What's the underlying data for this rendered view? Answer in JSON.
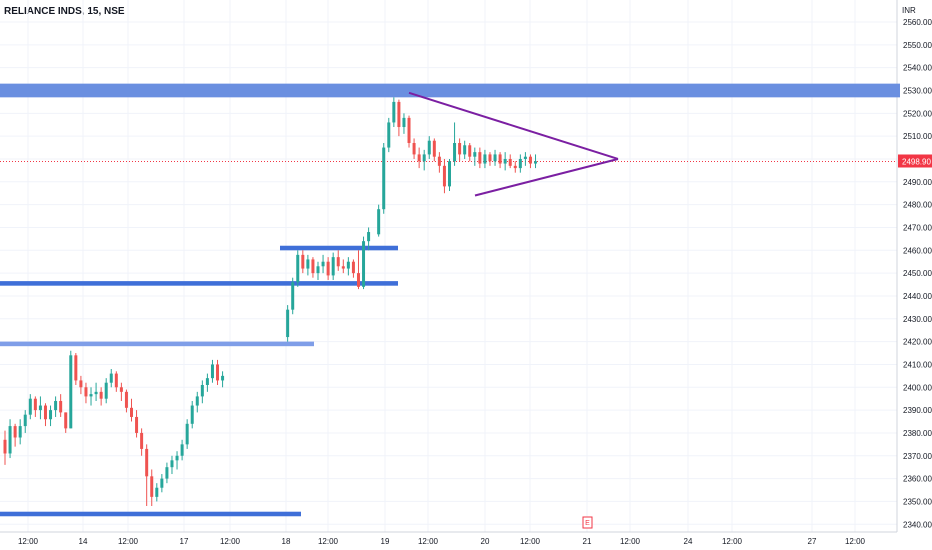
{
  "header": {
    "title": "RELIANCE INDS, 15, NSE",
    "currency": "INR"
  },
  "chart_data": {
    "type": "candlestick",
    "symbol": "RELIANCE INDS",
    "interval": "15",
    "exchange": "NSE",
    "ylim": [
      2335,
      2568
    ],
    "y_ticks": [
      2560.0,
      2550.0,
      2540.0,
      2530.0,
      2520.0,
      2510.0,
      2500.0,
      2490.0,
      2480.0,
      2470.0,
      2460.0,
      2450.0,
      2440.0,
      2430.0,
      2420.0,
      2410.0,
      2400.0,
      2390.0,
      2380.0,
      2370.0,
      2360.0,
      2350.0,
      2340.0
    ],
    "y_tick_labels": [
      "2560.00",
      "2550.00",
      "2540.00",
      "2530.00",
      "2520.00",
      "2510.00",
      "2500.00",
      "2490.00",
      "2480.00",
      "2470.00",
      "2460.00",
      "2450.00",
      "2440.00",
      "2430.00",
      "2420.00",
      "2410.00",
      "2400.00",
      "2390.00",
      "2380.00",
      "2370.00",
      "2360.00",
      "2350.00",
      "2340.00"
    ],
    "x_tick_labels": [
      "12:00",
      "14",
      "12:00",
      "17",
      "12:00",
      "18",
      "12:00",
      "19",
      "12:00",
      "20",
      "12:00",
      "21",
      "12:00",
      "24",
      "12:00",
      "27",
      "12:00"
    ],
    "current_price": "2498.90",
    "colors": {
      "up": "#26a69a",
      "down": "#ef5350",
      "zones": "#3f6fd8",
      "light_zone": "#6a8fe0",
      "triangle": "#7b1fa2",
      "price_line": "#f23645"
    },
    "candles": [
      [
        2377,
        2381,
        2366,
        2371
      ],
      [
        2371,
        2386,
        2369,
        2383
      ],
      [
        2383,
        2384,
        2374,
        2378
      ],
      [
        2378,
        2386,
        2375,
        2383
      ],
      [
        2383,
        2390,
        2380,
        2388
      ],
      [
        2388,
        2397,
        2386,
        2395
      ],
      [
        2395,
        2396,
        2387,
        2390
      ],
      [
        2390,
        2396,
        2386,
        2392
      ],
      [
        2392,
        2393,
        2383,
        2386
      ],
      [
        2386,
        2392,
        2383,
        2390
      ],
      [
        2390,
        2396,
        2387,
        2394
      ],
      [
        2394,
        2397,
        2387,
        2389
      ],
      [
        2389,
        2389,
        2380,
        2382
      ],
      [
        2382,
        2416,
        2382,
        2414
      ],
      [
        2414,
        2415,
        2401,
        2403
      ],
      [
        2403,
        2405,
        2397,
        2400
      ],
      [
        2400,
        2402,
        2393,
        2396
      ],
      [
        2396,
        2400,
        2392,
        2397
      ],
      [
        2397,
        2402,
        2394,
        2398
      ],
      [
        2398,
        2400,
        2392,
        2395
      ],
      [
        2395,
        2404,
        2393,
        2402
      ],
      [
        2402,
        2408,
        2400,
        2406
      ],
      [
        2406,
        2407,
        2398,
        2400
      ],
      [
        2400,
        2402,
        2394,
        2398
      ],
      [
        2398,
        2399,
        2389,
        2391
      ],
      [
        2391,
        2395,
        2385,
        2387
      ],
      [
        2387,
        2390,
        2378,
        2380
      ],
      [
        2380,
        2382,
        2370,
        2373
      ],
      [
        2373,
        2375,
        2348,
        2361
      ],
      [
        2361,
        2364,
        2348,
        2352
      ],
      [
        2352,
        2358,
        2350,
        2356
      ],
      [
        2356,
        2362,
        2354,
        2360
      ],
      [
        2360,
        2367,
        2358,
        2365
      ],
      [
        2365,
        2370,
        2362,
        2368
      ],
      [
        2368,
        2372,
        2364,
        2370
      ],
      [
        2370,
        2377,
        2368,
        2375
      ],
      [
        2375,
        2386,
        2373,
        2384
      ],
      [
        2384,
        2394,
        2382,
        2392
      ],
      [
        2392,
        2398,
        2389,
        2396
      ],
      [
        2396,
        2403,
        2393,
        2401
      ],
      [
        2401,
        2406,
        2398,
        2404
      ],
      [
        2404,
        2412,
        2402,
        2410
      ],
      [
        2410,
        2412,
        2401,
        2403
      ],
      [
        2403,
        2407,
        2400,
        2405
      ],
      [
        2422,
        2436,
        2420,
        2434
      ],
      [
        2434,
        2448,
        2432,
        2446
      ],
      [
        2446,
        2460,
        2444,
        2458
      ],
      [
        2458,
        2460,
        2450,
        2452
      ],
      [
        2452,
        2458,
        2449,
        2456
      ],
      [
        2456,
        2457,
        2448,
        2450
      ],
      [
        2450,
        2455,
        2447,
        2453
      ],
      [
        2453,
        2458,
        2450,
        2455
      ],
      [
        2455,
        2457,
        2447,
        2449
      ],
      [
        2449,
        2459,
        2447,
        2457
      ],
      [
        2457,
        2460,
        2451,
        2453
      ],
      [
        2453,
        2456,
        2450,
        2452
      ],
      [
        2452,
        2457,
        2449,
        2455
      ],
      [
        2455,
        2456,
        2448,
        2450
      ],
      [
        2450,
        2460,
        2443,
        2444
      ],
      [
        2444,
        2466,
        2443,
        2464
      ],
      [
        2464,
        2470,
        2460,
        2468
      ],
      [
        2467,
        2480,
        2466,
        2478
      ],
      [
        2478,
        2507,
        2476,
        2505
      ],
      [
        2505,
        2518,
        2503,
        2516
      ],
      [
        2516,
        2527,
        2514,
        2525
      ],
      [
        2525,
        2526,
        2510,
        2514
      ],
      [
        2514,
        2520,
        2511,
        2518
      ],
      [
        2518,
        2519,
        2505,
        2507
      ],
      [
        2507,
        2509,
        2500,
        2502
      ],
      [
        2502,
        2505,
        2496,
        2499
      ],
      [
        2499,
        2504,
        2495,
        2502
      ],
      [
        2502,
        2510,
        2500,
        2508
      ],
      [
        2508,
        2509,
        2499,
        2501
      ],
      [
        2501,
        2503,
        2494,
        2497
      ],
      [
        2497,
        2500,
        2485,
        2488
      ],
      [
        2488,
        2500,
        2486,
        2499
      ],
      [
        2499,
        2516,
        2497,
        2507
      ],
      [
        2507,
        2509,
        2499,
        2502
      ],
      [
        2502,
        2508,
        2500,
        2506
      ],
      [
        2506,
        2507,
        2499,
        2501
      ],
      [
        2501,
        2505,
        2497,
        2503
      ],
      [
        2503,
        2505,
        2496,
        2498
      ],
      [
        2498,
        2504,
        2496,
        2502
      ],
      [
        2502,
        2503,
        2497,
        2499
      ],
      [
        2499,
        2504,
        2497,
        2502
      ],
      [
        2502,
        2503,
        2496,
        2498
      ],
      [
        2498,
        2503,
        2495,
        2500
      ],
      [
        2500,
        2502,
        2496,
        2497
      ],
      [
        2497,
        2499,
        2494,
        2496
      ],
      [
        2496,
        2502,
        2494,
        2500
      ],
      [
        2500,
        2503,
        2497,
        2501
      ],
      [
        2501,
        2502,
        2496,
        2498
      ],
      [
        2498,
        2502,
        2496,
        2499
      ]
    ],
    "candle_dates_note": "",
    "zones": [
      {
        "y1": 2527,
        "y2": 2533
      },
      {
        "y1": 2460,
        "y2": 2462
      },
      {
        "y1": 2444.5,
        "y2": 2446.5
      },
      {
        "y1": 2418,
        "y2": 2420
      },
      {
        "y1": 2343.5,
        "y2": 2345.5
      }
    ],
    "triangle": {
      "apex": 2500,
      "upper_start": 2529,
      "lower_start": 2484
    },
    "event_marker": "E"
  }
}
